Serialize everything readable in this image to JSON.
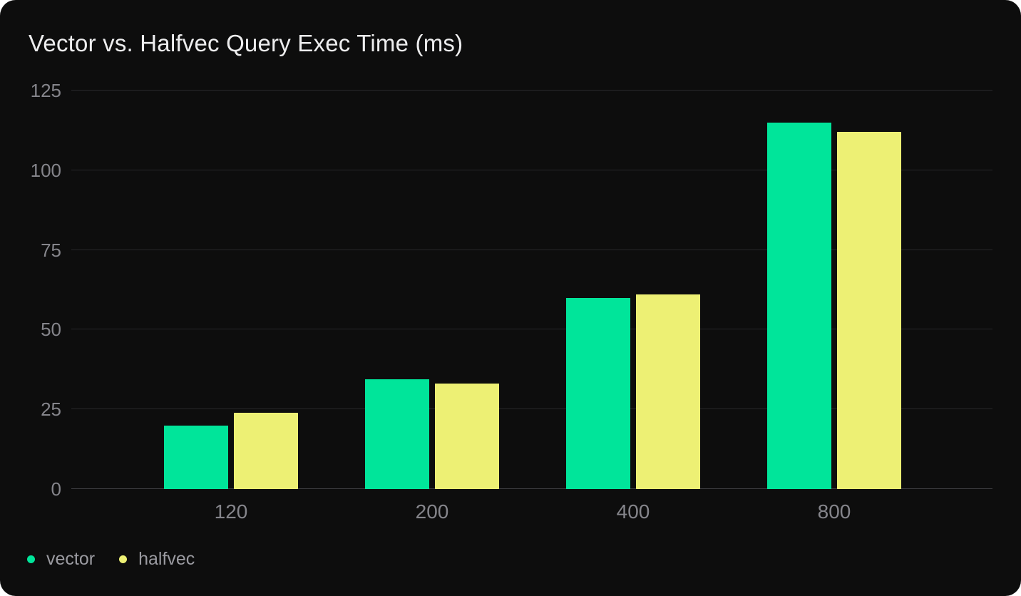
{
  "chart_data": {
    "type": "bar",
    "title": "Vector vs. Halfvec Query Exec Time (ms)",
    "categories": [
      "120",
      "200",
      "400",
      "800"
    ],
    "series": [
      {
        "name": "vector",
        "color": "#00e59a",
        "values": [
          20,
          34.5,
          60,
          115
        ]
      },
      {
        "name": "halfvec",
        "color": "#edf074",
        "values": [
          24,
          33,
          61,
          112
        ]
      }
    ],
    "xlabel": "",
    "ylabel": "",
    "ylim": [
      0,
      125
    ],
    "yticks": [
      0,
      25,
      50,
      75,
      100,
      125
    ],
    "grid": true,
    "legend_position": "bottom-left"
  },
  "colors": {
    "card_background": "#0d0d0d",
    "page_background": "#ffffff",
    "gridline": "#27272a",
    "axis_baseline": "#3e3e42",
    "tick_label": "#85858b",
    "legend_label": "#9a9aa0",
    "title_text": "#ededee"
  }
}
